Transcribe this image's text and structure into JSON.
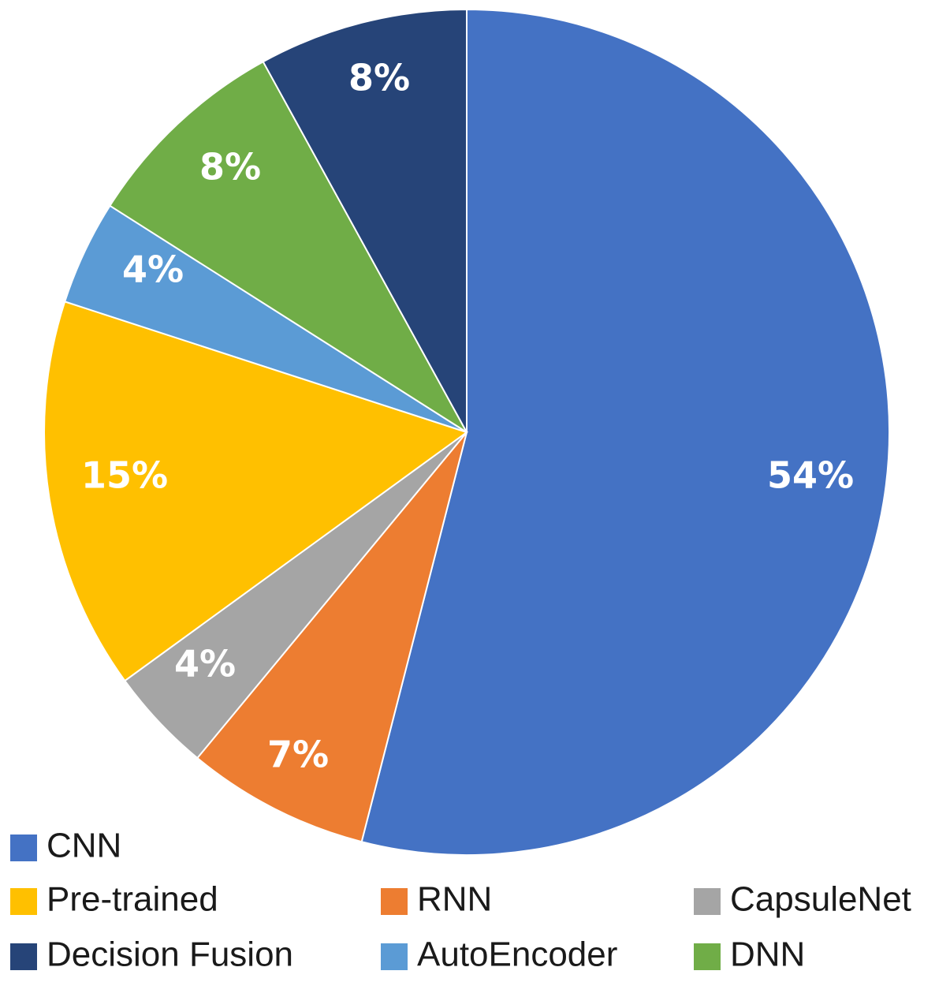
{
  "chart_data": {
    "type": "pie",
    "slices": [
      {
        "name": "CNN",
        "value": 54,
        "label": "54%",
        "color": "#4472C4"
      },
      {
        "name": "RNN",
        "value": 7,
        "label": "7%",
        "color": "#ED7D31"
      },
      {
        "name": "CapsuleNet",
        "value": 4,
        "label": "4%",
        "color": "#A5A5A5"
      },
      {
        "name": "Pre-trained",
        "value": 15,
        "label": "15%",
        "color": "#FFC000"
      },
      {
        "name": "AutoEncoder",
        "value": 4,
        "label": "4%",
        "color": "#5B9BD5"
      },
      {
        "name": "DNN",
        "value": 8,
        "label": "8%",
        "color": "#70AD47"
      },
      {
        "name": "Decision Fusion",
        "value": 8,
        "label": "8%",
        "color": "#264478"
      }
    ],
    "legend": {
      "placement": "bottom",
      "rows": [
        [
          "CNN"
        ],
        [
          "Pre-trained",
          "RNN",
          "CapsuleNet"
        ],
        [
          "Decision Fusion",
          "AutoEncoder",
          "DNN"
        ]
      ]
    }
  }
}
